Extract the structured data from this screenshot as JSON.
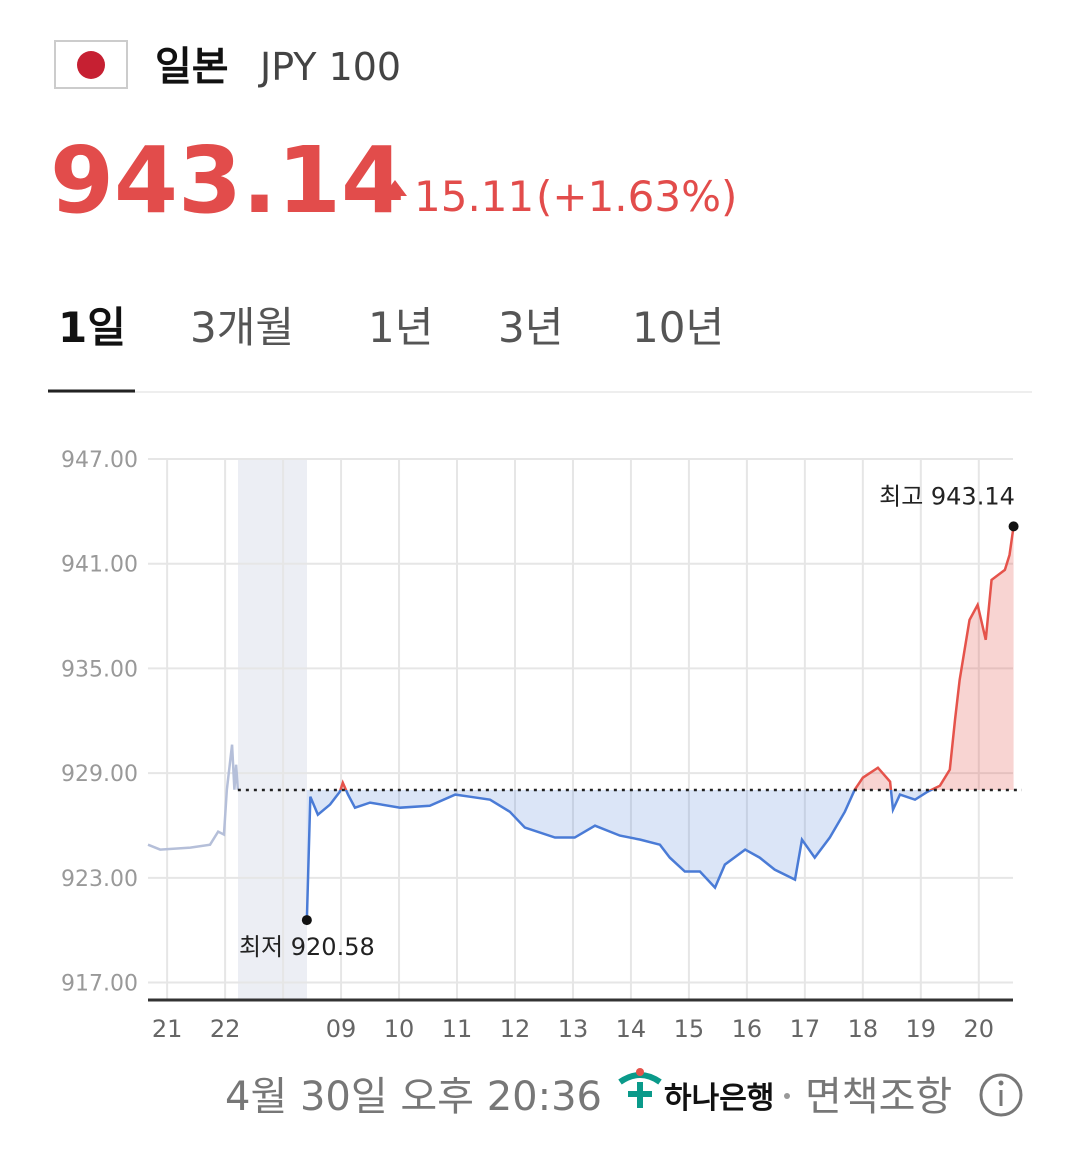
{
  "header": {
    "country": "일본",
    "currency": "JPY 100",
    "price": "943.14",
    "change": "15.11",
    "change_pct": "(+1.63%)"
  },
  "tabs": [
    "1일",
    "3개월",
    "1년",
    "3년",
    "10년"
  ],
  "chart_data": {
    "type": "line",
    "xlim": [
      -0.33,
      14.59
    ],
    "ylim": [
      916,
      947
    ],
    "xticks": [
      {
        "value": 0,
        "label": "21"
      },
      {
        "value": 1,
        "label": "22"
      },
      {
        "value": 2,
        "label": null
      },
      {
        "value": 3,
        "label": "09"
      },
      {
        "value": 4,
        "label": "10"
      },
      {
        "value": 5,
        "label": "11"
      },
      {
        "value": 6,
        "label": "12"
      },
      {
        "value": 7,
        "label": "13"
      },
      {
        "value": 8,
        "label": "14"
      },
      {
        "value": 9,
        "label": "15"
      },
      {
        "value": 10,
        "label": "16"
      },
      {
        "value": 11,
        "label": "17"
      },
      {
        "value": 12,
        "label": "18"
      },
      {
        "value": 13,
        "label": "19"
      },
      {
        "value": 14,
        "label": "20"
      }
    ],
    "yticks": [
      {
        "value": 917,
        "label": "917.00"
      },
      {
        "value": 923,
        "label": "923.00"
      },
      {
        "value": 929,
        "label": "929.00"
      },
      {
        "value": 935,
        "label": "935.00"
      },
      {
        "value": 941,
        "label": "941.00"
      },
      {
        "value": 947,
        "label": "947.00"
      }
    ],
    "grid": true,
    "baseline": 928.03,
    "series": [
      {
        "color": "#b5bfd9",
        "x": [
          -0.33,
          -0.12,
          0.4,
          0.74,
          0.88,
          0.98,
          1.03,
          1.09,
          1.12,
          1.16,
          1.19,
          1.22
        ],
        "values": [
          924.9,
          924.62,
          924.73,
          924.9,
          925.65,
          925.48,
          928.05,
          929.77,
          930.63,
          928.05,
          929.48,
          928.05
        ]
      },
      {
        "color": "#4a7bd6",
        "up_color": "#e5534b",
        "x": [
          2.41,
          2.47,
          2.6,
          2.81,
          2.98,
          3.03,
          3.12,
          3.24,
          3.5,
          4.02,
          4.53,
          4.97,
          5.22,
          5.57,
          5.91,
          6.17,
          6.69,
          7.03,
          7.38,
          7.81,
          8.16,
          8.5,
          8.67,
          8.93,
          9.19,
          9.45,
          9.62,
          9.97,
          10.22,
          10.48,
          10.83,
          10.95,
          11.17,
          11.43,
          11.69,
          11.86,
          12.0,
          12.26,
          12.47,
          12.52,
          12.64,
          12.9,
          13.12,
          13.33,
          13.5,
          13.59,
          13.67,
          13.84,
          13.98,
          14.12,
          14.22,
          14.45,
          14.53,
          14.6
        ],
        "values": [
          920.58,
          927.65,
          926.62,
          927.2,
          927.94,
          928.45,
          927.77,
          927.02,
          927.31,
          927.02,
          927.13,
          927.77,
          927.65,
          927.48,
          926.79,
          925.88,
          925.31,
          925.31,
          925.99,
          925.42,
          925.19,
          924.9,
          924.16,
          923.36,
          923.36,
          922.44,
          923.76,
          924.62,
          924.16,
          923.47,
          922.9,
          925.19,
          924.16,
          925.31,
          926.79,
          928.05,
          928.74,
          929.31,
          928.51,
          926.91,
          927.77,
          927.48,
          927.94,
          928.28,
          929.2,
          932.06,
          934.35,
          937.78,
          938.64,
          936.64,
          940.07,
          940.65,
          941.5,
          943.14
        ]
      }
    ],
    "annotations": [
      {
        "text": "최고 943.14"
      },
      {
        "text": "최저 920.58"
      }
    ]
  },
  "footer": {
    "timestamp": "4월 30일 오후 20:36",
    "bank": "하나은행",
    "disclaimer": "면책조항"
  }
}
